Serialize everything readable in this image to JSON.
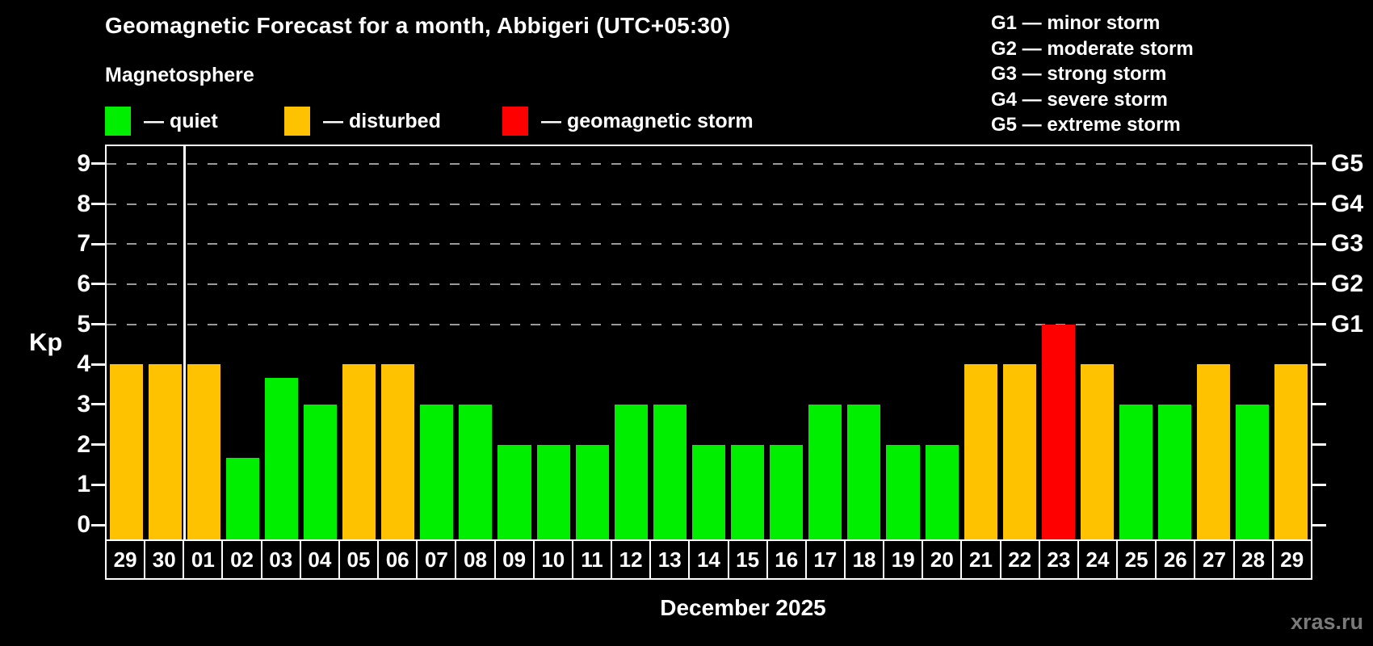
{
  "header": {
    "title": "Geomagnetic Forecast for a month, Abbigeri (UTC+05:30)",
    "subtitle": "Magnetosphere"
  },
  "legend": {
    "items": [
      {
        "key": "quiet",
        "label": "— quiet",
        "color": "#00ee00"
      },
      {
        "key": "disturbed",
        "label": "— disturbed",
        "color": "#ffc200"
      },
      {
        "key": "storm",
        "label": "— geomagnetic storm",
        "color": "#ff0000"
      }
    ]
  },
  "g_scale_legend": {
    "items": [
      {
        "label": "G1 — minor storm"
      },
      {
        "label": "G2 — moderate storm"
      },
      {
        "label": "G3 — strong storm"
      },
      {
        "label": "G4 — severe storm"
      },
      {
        "label": "G5 — extreme storm"
      }
    ]
  },
  "footer": {
    "xlabel": "December 2025",
    "watermark": "xras.ru"
  },
  "chart_data": {
    "type": "bar",
    "title": "Geomagnetic Forecast for a month, Abbigeri (UTC+05:30)",
    "subtitle": "Magnetosphere",
    "xlabel": "December 2025",
    "ylabel": "Kp",
    "ylim": [
      0,
      9
    ],
    "y_ticks": [
      0,
      1,
      2,
      3,
      4,
      5,
      6,
      7,
      8,
      9
    ],
    "dashed_gridlines_at": [
      5,
      6,
      7,
      8,
      9
    ],
    "grid": "dashed horizontal lines at storm levels G1–G5 only",
    "legend_position": "top-left",
    "right_axis_labels": [
      {
        "text": "G1",
        "value": 5
      },
      {
        "text": "G2",
        "value": 6
      },
      {
        "text": "G3",
        "value": 7
      },
      {
        "text": "G4",
        "value": 8
      },
      {
        "text": "G5",
        "value": 9
      }
    ],
    "month_separator_after_index": 1,
    "status_colors": {
      "quiet": "#00ee00",
      "disturbed": "#ffc200",
      "storm": "#ff0000"
    },
    "bars": [
      {
        "day": "29",
        "kp": 4,
        "status": "disturbed"
      },
      {
        "day": "30",
        "kp": 4,
        "status": "disturbed"
      },
      {
        "day": "01",
        "kp": 4,
        "status": "disturbed"
      },
      {
        "day": "02",
        "kp": 1.67,
        "status": "quiet"
      },
      {
        "day": "03",
        "kp": 3.67,
        "status": "quiet"
      },
      {
        "day": "04",
        "kp": 3,
        "status": "quiet"
      },
      {
        "day": "05",
        "kp": 4,
        "status": "disturbed"
      },
      {
        "day": "06",
        "kp": 4,
        "status": "disturbed"
      },
      {
        "day": "07",
        "kp": 3,
        "status": "quiet"
      },
      {
        "day": "08",
        "kp": 3,
        "status": "quiet"
      },
      {
        "day": "09",
        "kp": 2,
        "status": "quiet"
      },
      {
        "day": "10",
        "kp": 2,
        "status": "quiet"
      },
      {
        "day": "11",
        "kp": 2,
        "status": "quiet"
      },
      {
        "day": "12",
        "kp": 3,
        "status": "quiet"
      },
      {
        "day": "13",
        "kp": 3,
        "status": "quiet"
      },
      {
        "day": "14",
        "kp": 2,
        "status": "quiet"
      },
      {
        "day": "15",
        "kp": 2,
        "status": "quiet"
      },
      {
        "day": "16",
        "kp": 2,
        "status": "quiet"
      },
      {
        "day": "17",
        "kp": 3,
        "status": "quiet"
      },
      {
        "day": "18",
        "kp": 3,
        "status": "quiet"
      },
      {
        "day": "19",
        "kp": 2,
        "status": "quiet"
      },
      {
        "day": "20",
        "kp": 2,
        "status": "quiet"
      },
      {
        "day": "21",
        "kp": 4,
        "status": "disturbed"
      },
      {
        "day": "22",
        "kp": 4,
        "status": "disturbed"
      },
      {
        "day": "23",
        "kp": 5,
        "status": "storm"
      },
      {
        "day": "24",
        "kp": 4,
        "status": "disturbed"
      },
      {
        "day": "25",
        "kp": 3,
        "status": "quiet"
      },
      {
        "day": "26",
        "kp": 3,
        "status": "quiet"
      },
      {
        "day": "27",
        "kp": 4,
        "status": "disturbed"
      },
      {
        "day": "28",
        "kp": 3,
        "status": "quiet"
      },
      {
        "day": "29",
        "kp": 4,
        "status": "disturbed"
      }
    ]
  }
}
